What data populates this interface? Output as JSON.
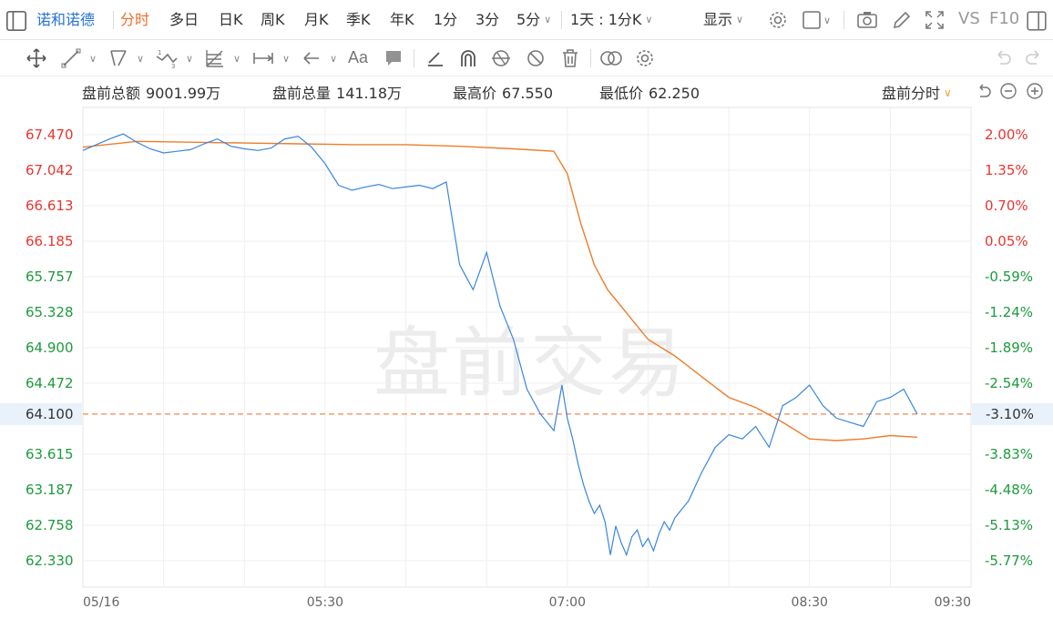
{
  "topbar": {
    "stock_name": "诺和诺德",
    "tabs": [
      "分时",
      "多日",
      "日K",
      "周K",
      "月K",
      "季K",
      "年K",
      "1分",
      "3分",
      "5分"
    ],
    "active_tab": "分时",
    "combo": "1天 : 1分K",
    "display_label": "显示",
    "vs_label": "VS",
    "f10_label": "F10"
  },
  "info": {
    "premarket_amount_label": "盘前总额",
    "premarket_amount": "9001.99万",
    "premarket_volume_label": "盘前总量",
    "premarket_volume": "141.18万",
    "high_label": "最高价",
    "high": "67.550",
    "low_label": "最低价",
    "low": "62.250",
    "mode_label": "盘前分时"
  },
  "watermark": "盘前交易",
  "current_price": "64.100",
  "current_pct": "-3.10%",
  "colors": {
    "up": "#e8362f",
    "down": "#1e9a3d",
    "price_line": "#3a86dd",
    "avg_line": "#ee7d2a",
    "accent": "#ee6d2a"
  },
  "chart_data": {
    "type": "line",
    "title": "",
    "x_ticks": [
      "05/16",
      "05:30",
      "07:00",
      "08:30",
      "09:30"
    ],
    "x_range": [
      "04:00",
      "09:30"
    ],
    "y_ticks": [
      "67.470",
      "67.042",
      "66.613",
      "66.185",
      "65.757",
      "65.328",
      "64.900",
      "64.472",
      "64.100",
      "63.615",
      "63.187",
      "62.758",
      "62.330"
    ],
    "y_ticks_right": [
      "2.00%",
      "1.35%",
      "0.70%",
      "0.05%",
      "-0.59%",
      "-1.24%",
      "-1.89%",
      "-2.54%",
      "-3.10%",
      "-3.83%",
      "-4.48%",
      "-5.13%",
      "-5.77%"
    ],
    "ylim": [
      62.25,
      67.55
    ],
    "reference_line": 64.1,
    "grid": true,
    "series": [
      {
        "name": "price",
        "x": [
          "04:00",
          "04:05",
          "04:10",
          "04:15",
          "04:20",
          "04:25",
          "04:30",
          "04:35",
          "04:40",
          "04:45",
          "04:50",
          "04:55",
          "05:00",
          "05:05",
          "05:10",
          "05:15",
          "05:20",
          "05:25",
          "05:30",
          "05:35",
          "05:40",
          "05:45",
          "05:50",
          "05:55",
          "06:00",
          "06:05",
          "06:10",
          "06:15",
          "06:20",
          "06:25",
          "06:30",
          "06:35",
          "06:40",
          "06:45",
          "06:50",
          "06:55",
          "06:58",
          "07:00",
          "07:02",
          "07:04",
          "07:06",
          "07:08",
          "07:10",
          "07:12",
          "07:14",
          "07:16",
          "07:18",
          "07:20",
          "07:22",
          "07:24",
          "07:26",
          "07:28",
          "07:30",
          "07:32",
          "07:34",
          "07:36",
          "07:38",
          "07:40",
          "07:45",
          "07:50",
          "07:55",
          "08:00",
          "08:05",
          "08:10",
          "08:15",
          "08:20",
          "08:25",
          "08:30",
          "08:35",
          "08:40",
          "08:45",
          "08:50",
          "08:55",
          "09:00",
          "09:05",
          "09:10"
        ],
        "values": [
          67.28,
          67.35,
          67.42,
          67.48,
          67.38,
          67.3,
          67.25,
          67.27,
          67.29,
          67.36,
          67.42,
          67.33,
          67.3,
          67.28,
          67.31,
          67.42,
          67.45,
          67.32,
          67.12,
          66.86,
          66.8,
          66.84,
          66.87,
          66.82,
          66.84,
          66.86,
          66.82,
          66.9,
          65.9,
          65.6,
          66.05,
          65.4,
          65.0,
          64.4,
          64.1,
          63.9,
          64.45,
          64.05,
          63.8,
          63.5,
          63.25,
          63.05,
          62.9,
          63.0,
          62.8,
          62.4,
          62.75,
          62.55,
          62.4,
          62.62,
          62.7,
          62.5,
          62.6,
          62.45,
          62.65,
          62.8,
          62.7,
          62.85,
          63.05,
          63.4,
          63.7,
          63.85,
          63.8,
          63.95,
          63.7,
          64.2,
          64.3,
          64.45,
          64.2,
          64.05,
          64.0,
          63.95,
          64.25,
          64.3,
          64.4,
          64.1
        ]
      },
      {
        "name": "average",
        "x": [
          "04:00",
          "04:20",
          "04:40",
          "05:00",
          "05:20",
          "05:40",
          "06:00",
          "06:20",
          "06:40",
          "06:55",
          "07:00",
          "07:05",
          "07:10",
          "07:15",
          "07:20",
          "07:25",
          "07:30",
          "07:40",
          "07:50",
          "08:00",
          "08:10",
          "08:20",
          "08:30",
          "08:40",
          "08:50",
          "09:00",
          "09:10"
        ],
        "values": [
          67.32,
          67.39,
          67.38,
          67.37,
          67.36,
          67.35,
          67.35,
          67.33,
          67.3,
          67.27,
          67.0,
          66.4,
          65.9,
          65.6,
          65.4,
          65.2,
          65.0,
          64.8,
          64.55,
          64.3,
          64.18,
          64.0,
          63.8,
          63.78,
          63.8,
          63.84,
          63.82
        ]
      }
    ]
  }
}
